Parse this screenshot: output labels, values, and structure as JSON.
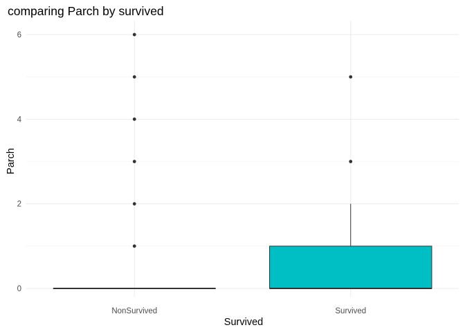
{
  "chart_data": {
    "type": "boxplot",
    "title": "comparing Parch by survived",
    "xlabel": "Survived",
    "ylabel": "Parch",
    "categories": [
      "NonSurvived",
      "Survived"
    ],
    "ylim": [
      -0.3,
      6.3
    ],
    "yticks": [
      0,
      2,
      4,
      6
    ],
    "grid": true,
    "legend": "none",
    "colors": {
      "box_fill": "#00BFC4",
      "box_line": "#333333",
      "outlier": "#333333"
    },
    "boxes": [
      {
        "category": "NonSurvived",
        "min": 0,
        "q1": 0,
        "median": 0,
        "q3": 0,
        "max": 0,
        "outliers": [
          1,
          2,
          3,
          4,
          5,
          6
        ]
      },
      {
        "category": "Survived",
        "min": 0,
        "q1": 0,
        "median": 0,
        "q3": 1,
        "max": 2,
        "outliers": [
          3,
          5
        ]
      }
    ]
  }
}
